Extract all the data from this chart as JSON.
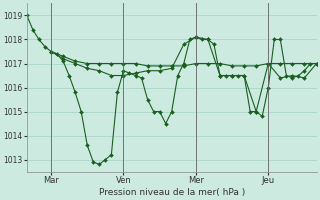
{
  "xlabel": "Pression niveau de la mer( hPa )",
  "ylim": [
    1012.5,
    1019.5
  ],
  "yticks": [
    1013,
    1014,
    1015,
    1016,
    1017,
    1018,
    1019
  ],
  "bg_color": "#cceae0",
  "grid_color": "#aad4c8",
  "line_color": "#1a5e20",
  "xtick_labels": [
    "Mar",
    "Ven",
    "Mer",
    "Jeu"
  ],
  "xtick_pos": [
    8,
    32,
    56,
    80
  ],
  "xlim": [
    0,
    96
  ],
  "line1_x": [
    0,
    2,
    4,
    6,
    8,
    10,
    12,
    14,
    16,
    18,
    20,
    22,
    24,
    26,
    28,
    30,
    32,
    34,
    36,
    38,
    40,
    42,
    44,
    46,
    48,
    50,
    52,
    54,
    56,
    58,
    60,
    62,
    64,
    66,
    68,
    70,
    72,
    74,
    76,
    78,
    80,
    82,
    84,
    86,
    88,
    90,
    92,
    94,
    96
  ],
  "line1_y": [
    1019.0,
    1018.4,
    1018.0,
    1017.7,
    1017.5,
    1017.4,
    1017.1,
    1016.5,
    1015.8,
    1015.0,
    1013.6,
    1012.9,
    1012.8,
    1013.0,
    1013.2,
    1015.8,
    1016.7,
    1016.6,
    1016.5,
    1016.4,
    1015.5,
    1015.0,
    1015.0,
    1014.5,
    1015.0,
    1016.5,
    1017.0,
    1018.0,
    1018.1,
    1018.0,
    1018.0,
    1017.8,
    1016.5,
    1016.5,
    1016.5,
    1016.5,
    1016.5,
    1015.0,
    1015.0,
    1014.8,
    1016.0,
    1018.0,
    1018.0,
    1016.5,
    1016.4,
    1016.5,
    1016.7,
    1017.0,
    1017.0
  ],
  "line2_x": [
    8,
    12,
    16,
    20,
    24,
    28,
    32,
    36,
    40,
    44,
    48,
    52,
    56,
    60,
    64,
    68,
    72,
    76,
    80,
    84,
    88,
    92,
    96
  ],
  "line2_y": [
    1017.5,
    1017.3,
    1017.1,
    1017.0,
    1017.0,
    1017.0,
    1017.0,
    1017.0,
    1016.9,
    1016.9,
    1016.9,
    1016.9,
    1017.0,
    1017.0,
    1017.0,
    1016.9,
    1016.9,
    1016.9,
    1017.0,
    1017.0,
    1017.0,
    1017.0,
    1017.0
  ],
  "line3_x": [
    8,
    12,
    16,
    20,
    24,
    28,
    32,
    36,
    40,
    44,
    48,
    52,
    56,
    60,
    64,
    68,
    72,
    76,
    80,
    84,
    88,
    92,
    96
  ],
  "line3_y": [
    1017.5,
    1017.2,
    1017.0,
    1016.8,
    1016.7,
    1016.5,
    1016.5,
    1016.6,
    1016.7,
    1016.7,
    1016.8,
    1017.8,
    1018.1,
    1018.0,
    1016.5,
    1016.5,
    1016.5,
    1015.0,
    1017.0,
    1016.4,
    1016.5,
    1016.4,
    1017.0
  ]
}
